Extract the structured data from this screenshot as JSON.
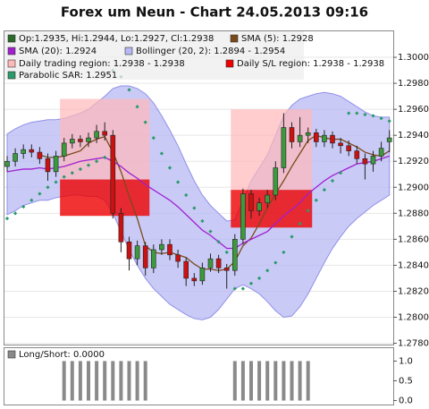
{
  "chart_data": [
    {
      "type": "candlestick",
      "title": "Forex um Neun - Chart 24.05.2013 09:16",
      "ohlc_label": "Op:1.2935, Hi:1.2944, Lo:1.2927, Cl:1.2938",
      "ohlc_color": "#2a6a2a",
      "up_color": "#3c9a3c",
      "down_color": "#cc1111",
      "open": [
        1.2916,
        1.292,
        1.2926,
        1.2929,
        1.2927,
        1.2922,
        1.2912,
        1.2924,
        1.2934,
        1.2937,
        1.2935,
        1.2938,
        1.2943,
        1.294,
        1.288,
        1.2858,
        1.2845,
        1.2855,
        1.2838,
        1.2852,
        1.2856,
        1.2848,
        1.2843,
        1.283,
        1.2828,
        1.2838,
        1.2845,
        1.2838,
        1.2836,
        1.286,
        1.2895,
        1.2882,
        1.2888,
        1.2894,
        1.2915,
        1.2946,
        1.2935,
        1.294,
        1.2942,
        1.2935,
        1.294,
        1.2934,
        1.2932,
        1.2928,
        1.2922,
        1.2918,
        1.2924,
        1.2935
      ],
      "high": [
        1.2924,
        1.293,
        1.2933,
        1.2933,
        1.2931,
        1.2926,
        1.2928,
        1.2938,
        1.2941,
        1.294,
        1.2942,
        1.2948,
        1.295,
        1.2944,
        1.2884,
        1.2862,
        1.2859,
        1.2858,
        1.2856,
        1.286,
        1.286,
        1.2852,
        1.2846,
        1.2834,
        1.2842,
        1.2849,
        1.2848,
        1.2841,
        1.2864,
        1.2899,
        1.2898,
        1.2892,
        1.2898,
        1.292,
        1.2957,
        1.295,
        1.2954,
        1.2946,
        1.2945,
        1.2944,
        1.2943,
        1.2938,
        1.2936,
        1.2932,
        1.2926,
        1.2928,
        1.2935,
        1.2944
      ],
      "low": [
        1.2912,
        1.2916,
        1.2922,
        1.2923,
        1.2918,
        1.2905,
        1.2908,
        1.292,
        1.293,
        1.2931,
        1.2931,
        1.2934,
        1.2936,
        1.2876,
        1.285,
        1.2836,
        1.284,
        1.2832,
        1.2834,
        1.2848,
        1.2844,
        1.2838,
        1.2824,
        1.2824,
        1.2825,
        1.2835,
        1.2834,
        1.2822,
        1.2832,
        1.2856,
        1.2876,
        1.2878,
        1.2884,
        1.289,
        1.2911,
        1.293,
        1.2931,
        1.2934,
        1.2931,
        1.2931,
        1.293,
        1.2926,
        1.2924,
        1.2918,
        1.2906,
        1.2912,
        1.292,
        1.2927
      ],
      "close": [
        1.292,
        1.2926,
        1.2929,
        1.2927,
        1.2922,
        1.2912,
        1.2924,
        1.2934,
        1.2937,
        1.2935,
        1.2938,
        1.2943,
        1.294,
        1.288,
        1.2858,
        1.2845,
        1.2855,
        1.2838,
        1.2852,
        1.2856,
        1.2848,
        1.2843,
        1.283,
        1.2828,
        1.2838,
        1.2845,
        1.2838,
        1.2836,
        1.286,
        1.2895,
        1.2882,
        1.2888,
        1.2894,
        1.2915,
        1.2946,
        1.2935,
        1.294,
        1.2942,
        1.2935,
        1.294,
        1.2934,
        1.2932,
        1.2928,
        1.2922,
        1.2918,
        1.2924,
        1.293,
        1.2938
      ],
      "series": [
        {
          "name": "SMA (5): 1.2928",
          "color": "#7a4a1a",
          "values": [
            null,
            null,
            null,
            null,
            1.2925,
            1.2923,
            1.2923,
            1.2924,
            1.2926,
            1.2928,
            1.2934,
            1.2937,
            1.2939,
            1.2927,
            1.2912,
            1.2893,
            1.2876,
            1.2855,
            1.285,
            1.2849,
            1.285,
            1.2848,
            1.2846,
            1.2841,
            1.2837,
            1.2837,
            1.2836,
            1.2837,
            1.2843,
            1.2855,
            1.2861,
            1.2872,
            1.2884,
            1.2895,
            1.2905,
            1.2916,
            1.2926,
            1.2936,
            1.294,
            1.2938,
            1.2937,
            1.2937,
            1.2934,
            1.2931,
            1.2927,
            1.2925,
            1.2924,
            1.2928
          ]
        },
        {
          "name": "SMA (20): 1.2924",
          "color": "#a020d0",
          "values": [
            1.2912,
            1.2913,
            1.2914,
            1.2914,
            1.2915,
            1.2914,
            1.2915,
            1.2916,
            1.2918,
            1.292,
            1.2921,
            1.2922,
            1.2923,
            1.292,
            1.2916,
            1.2911,
            1.2907,
            1.2902,
            1.2898,
            1.2894,
            1.289,
            1.2885,
            1.2879,
            1.2873,
            1.2867,
            1.2863,
            1.2858,
            1.2853,
            1.2853,
            1.2857,
            1.286,
            1.2863,
            1.2866,
            1.2872,
            1.2878,
            1.2883,
            1.2888,
            1.2895,
            1.29,
            1.2905,
            1.2909,
            1.2912,
            1.2915,
            1.2918,
            1.2919,
            1.292,
            1.2922,
            1.2924
          ]
        }
      ],
      "bollinger": {
        "name": "Bollinger (20, 2): 1.2894 - 1.2954",
        "color": "#b8b8f4",
        "line_color": "#9090e8",
        "upper": [
          1.2941,
          1.2945,
          1.2948,
          1.295,
          1.2951,
          1.2952,
          1.2952,
          1.2953,
          1.2955,
          1.2957,
          1.296,
          1.2965,
          1.297,
          1.2976,
          1.2978,
          1.2978,
          1.2976,
          1.2972,
          1.2965,
          1.2955,
          1.2944,
          1.2932,
          1.2918,
          1.2905,
          1.2894,
          1.2886,
          1.288,
          1.2874,
          1.2875,
          1.289,
          1.2905,
          1.2915,
          1.2925,
          1.294,
          1.2955,
          1.2963,
          1.2968,
          1.297,
          1.2972,
          1.2973,
          1.2972,
          1.297,
          1.2966,
          1.2962,
          1.2958,
          1.2955,
          1.2954,
          1.2954
        ],
        "lower": [
          1.2879,
          1.2882,
          1.2886,
          1.2888,
          1.289,
          1.289,
          1.2892,
          1.2893,
          1.2894,
          1.2894,
          1.2893,
          1.2893,
          1.289,
          1.288,
          1.2866,
          1.2852,
          1.284,
          1.283,
          1.2822,
          1.2816,
          1.281,
          1.2806,
          1.2802,
          1.2799,
          1.2798,
          1.28,
          1.2806,
          1.2814,
          1.2822,
          1.2825,
          1.2822,
          1.2818,
          1.2812,
          1.2805,
          1.28,
          1.2801,
          1.2808,
          1.2818,
          1.283,
          1.2842,
          1.2853,
          1.2862,
          1.287,
          1.2876,
          1.2881,
          1.2886,
          1.289,
          1.2894
        ]
      },
      "regions": {
        "trading_name": "Daily trading region: 1.2938 - 1.2938",
        "trading_color": "#ffb8b8",
        "sl_name": "Daily S/L region: 1.2938 - 1.2938",
        "sl_color": "#ee0000",
        "items": [
          {
            "start": 7,
            "end": 17,
            "trading": [
              1.2906,
              1.2968
            ],
            "sl": [
              1.2878,
              1.2906
            ]
          },
          {
            "start": 28,
            "end": 37,
            "trading": [
              1.2898,
              1.296
            ],
            "sl": [
              1.2869,
              1.2898
            ]
          }
        ]
      },
      "sar": {
        "name": "Parabolic SAR: 1.2951",
        "color": "#2a9a6a",
        "values": [
          1.2876,
          1.288,
          1.2885,
          1.289,
          1.2895,
          1.29,
          1.2904,
          1.2908,
          1.2911,
          1.2914,
          1.2917,
          1.292,
          1.2923,
          1.299,
          1.2985,
          1.2975,
          1.2962,
          1.295,
          1.2938,
          1.2926,
          1.2915,
          1.2904,
          1.2894,
          1.2884,
          1.2874,
          1.2866,
          1.2858,
          1.285,
          1.2822,
          1.2822,
          1.2826,
          1.283,
          1.2836,
          1.2842,
          1.285,
          1.2862,
          1.2872,
          1.2882,
          1.289,
          1.2898,
          1.2905,
          1.2911,
          1.2957,
          1.2957,
          1.2956,
          1.2955,
          1.2953,
          1.2951
        ]
      },
      "ylim": [
        1.2779,
        1.302
      ],
      "yticks": [
        {
          "value": 1.278,
          "label": "1.2780"
        },
        {
          "value": 1.28,
          "label": "1.2800"
        },
        {
          "value": 1.282,
          "label": "1.2820"
        },
        {
          "value": 1.284,
          "label": "1.2840"
        },
        {
          "value": 1.286,
          "label": "1.2860"
        },
        {
          "value": 1.288,
          "label": "1.2880"
        },
        {
          "value": 1.29,
          "label": "1.2900"
        },
        {
          "value": 1.292,
          "label": "1.2920"
        },
        {
          "value": 1.294,
          "label": "1.2940"
        },
        {
          "value": 1.296,
          "label": "1.2960"
        },
        {
          "value": 1.298,
          "label": "1.2980"
        },
        {
          "value": 1.3,
          "label": "1.3000"
        }
      ]
    },
    {
      "type": "bar",
      "name": "Long/Short: 0.0000",
      "color": "#8a8a8a",
      "values": [
        0,
        0,
        0,
        0,
        0,
        0,
        0,
        1,
        1,
        1,
        1,
        1,
        1,
        1,
        1,
        1,
        1,
        1,
        0,
        0,
        0,
        0,
        0,
        0,
        0,
        0,
        0,
        0,
        1,
        1,
        1,
        1,
        1,
        1,
        1,
        1,
        1,
        1,
        0,
        0,
        0,
        0,
        0,
        0,
        0,
        0,
        0,
        0
      ],
      "ylim": [
        -0.1,
        1.35
      ],
      "yticks": [
        {
          "value": 0,
          "label": "0.0"
        },
        {
          "value": 0.5,
          "label": "0.5"
        },
        {
          "value": 1,
          "label": "1.0"
        }
      ]
    }
  ]
}
